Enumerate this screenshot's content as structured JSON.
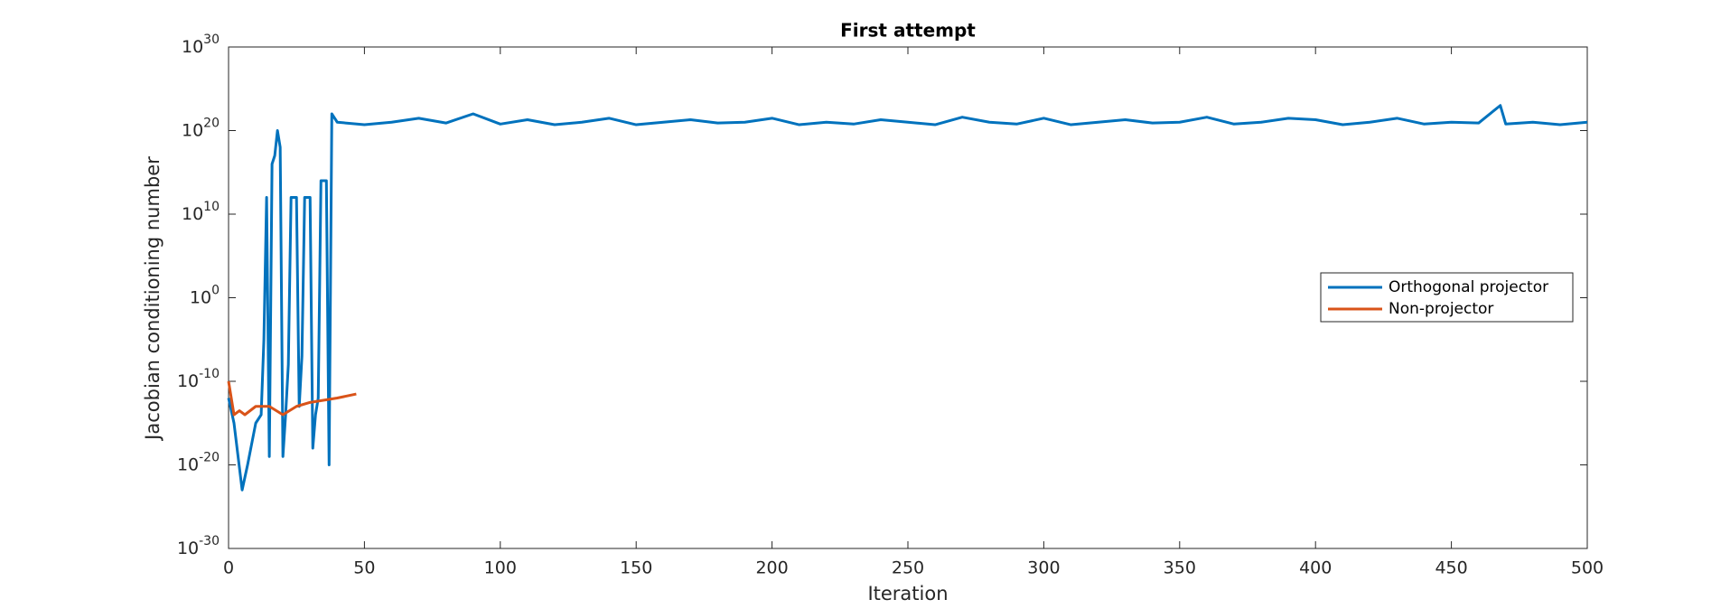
{
  "chart_data": {
    "type": "line",
    "title": "First attempt",
    "xlabel": "Iteration",
    "ylabel": "Jacobian conditioning number",
    "yscale": "log",
    "grid": false,
    "legend_position": "right",
    "xlim": [
      0,
      500
    ],
    "xticks": [
      0,
      50,
      100,
      150,
      200,
      250,
      300,
      350,
      400,
      450,
      500
    ],
    "ylim": [
      1e-30,
      1e+30
    ],
    "yticks": [
      {
        "value": 1e-30,
        "label": "10^-30"
      },
      {
        "value": 1e-20,
        "label": "10^-20"
      },
      {
        "value": 1e-10,
        "label": "10^-10"
      },
      {
        "value": 1,
        "label": "10^0"
      },
      {
        "value": 10000000000.0,
        "label": "10^10"
      },
      {
        "value": 1e+20,
        "label": "10^20"
      },
      {
        "value": 1e+30,
        "label": "10^30"
      }
    ],
    "series": [
      {
        "name": "Orthogonal projector",
        "color": "#0072bd",
        "x": [
          0,
          2,
          5,
          7,
          10,
          12,
          13,
          14,
          15,
          16,
          17,
          18,
          19,
          20,
          21,
          22,
          23,
          25,
          26,
          27,
          28,
          30,
          31,
          32,
          33,
          34,
          36,
          37,
          38,
          40,
          50,
          60,
          70,
          80,
          90,
          100,
          110,
          120,
          130,
          140,
          150,
          160,
          170,
          180,
          190,
          200,
          210,
          220,
          230,
          240,
          250,
          260,
          270,
          280,
          290,
          300,
          310,
          320,
          330,
          340,
          350,
          360,
          370,
          380,
          390,
          400,
          410,
          420,
          430,
          440,
          450,
          460,
          468,
          470,
          480,
          490,
          500
        ],
        "values": [
          1e-12,
          1e-15,
          1e-23,
          1e-20,
          1e-15,
          1e-14,
          1e-05,
          1000000000000.0,
          1e-19,
          1e+16,
          1e+17,
          1e+20,
          1e+18,
          1e-19,
          1e-14,
          1e-08,
          1000000000000.0,
          1000000000000.0,
          1e-13,
          1e-07,
          1000000000000.0,
          1000000000000.0,
          1e-18,
          1e-14,
          1e-12,
          100000000000000.0,
          100000000000000.0,
          1e-20,
          1e+22,
          1e+21,
          5e+20,
          1e+21,
          3e+21,
          8e+20,
          1e+22,
          6e+20,
          2e+21,
          5e+20,
          1e+21,
          3e+21,
          5e+20,
          1e+21,
          2e+21,
          8e+20,
          1e+21,
          3e+21,
          5e+20,
          1e+21,
          6e+20,
          2e+21,
          1e+21,
          5e+20,
          4e+21,
          1e+21,
          6e+20,
          3e+21,
          5e+20,
          1e+21,
          2e+21,
          8e+20,
          1e+21,
          4e+21,
          6e+20,
          1e+21,
          3e+21,
          2e+21,
          5e+20,
          1e+21,
          3e+21,
          6e+20,
          1e+21,
          8e+20,
          1e+23,
          6e+20,
          1e+21,
          5e+20,
          1e+21
        ]
      },
      {
        "name": "Non-projector",
        "color": "#d95319",
        "x": [
          0,
          2,
          4,
          6,
          10,
          15,
          20,
          25,
          30,
          40,
          47
        ],
        "values": [
          1e-10,
          1e-14,
          3e-14,
          1e-14,
          1e-13,
          1e-13,
          1e-14,
          1e-13,
          3e-13,
          1e-12,
          3e-12
        ]
      }
    ]
  }
}
